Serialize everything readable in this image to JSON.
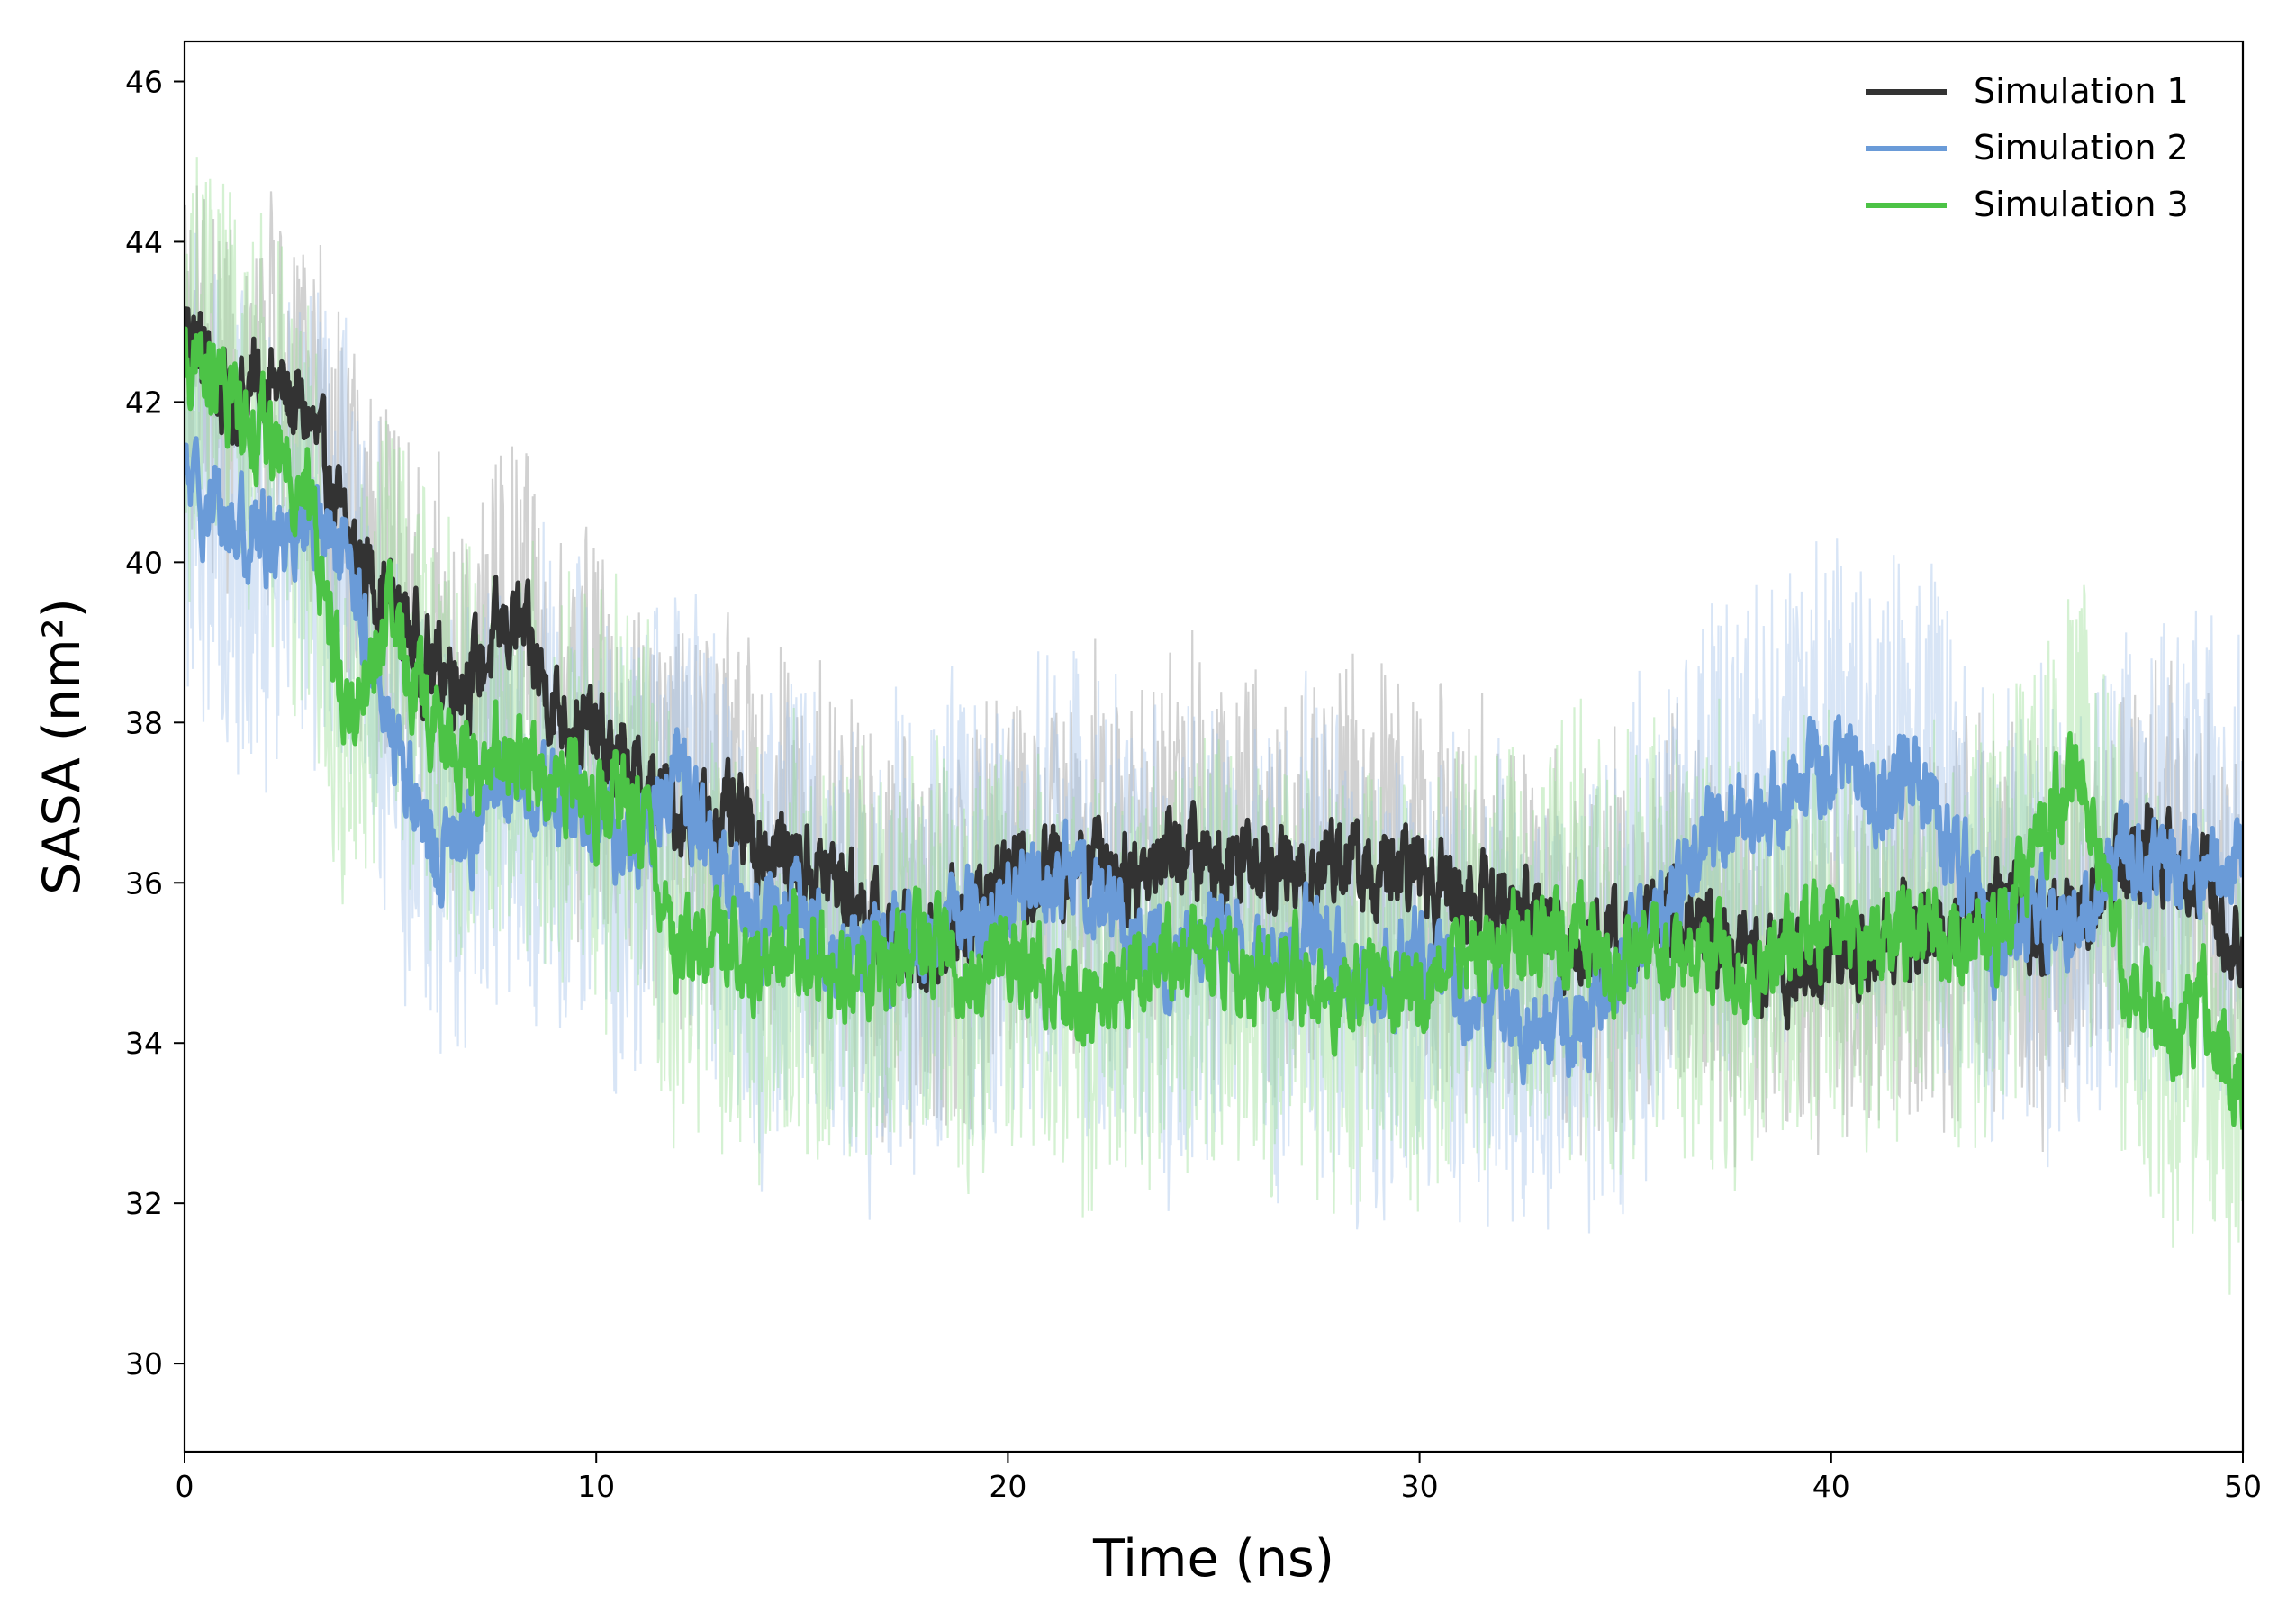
{
  "chart_data": {
    "type": "line",
    "xlabel": "Time (ns)",
    "ylabel": "SASA (nm²)",
    "xlim": [
      0,
      50
    ],
    "ylim": [
      28.9,
      46.5
    ],
    "x_ticks": [
      "0",
      "10",
      "20",
      "30",
      "40",
      "50"
    ],
    "y_ticks": [
      "30",
      "32",
      "34",
      "36",
      "38",
      "40",
      "42",
      "44",
      "46"
    ],
    "grid": false,
    "legend_position": "top-right",
    "series": [
      {
        "name": "Simulation 1",
        "color": "#333333",
        "band_color": "#999999",
        "x": [
          0,
          1,
          2,
          3,
          4,
          5,
          6,
          7,
          8,
          9,
          10,
          11,
          12,
          13,
          14,
          15,
          16,
          17,
          18,
          19,
          20,
          21,
          22,
          23,
          24,
          25,
          26,
          27,
          28,
          29,
          30,
          31,
          32,
          33,
          34,
          35,
          36,
          37,
          38,
          39,
          40,
          41,
          42,
          43,
          44,
          45,
          46,
          47,
          48,
          49,
          50
        ],
        "mean": [
          43.0,
          42.0,
          42.3,
          41.8,
          40.2,
          39.5,
          38.7,
          38.6,
          39.3,
          38.2,
          37.8,
          37.2,
          36.9,
          36.8,
          36.5,
          36.2,
          36.0,
          35.3,
          35.2,
          35.6,
          36.0,
          36.2,
          36.4,
          36.1,
          36.5,
          36.2,
          36.5,
          36.0,
          36.4,
          36.0,
          36.2,
          35.8,
          35.7,
          35.5,
          35.2,
          35.3,
          35.6,
          35.4,
          35.0,
          34.9,
          35.1,
          35.2,
          35.4,
          35.5,
          35.8,
          35.4,
          35.7,
          36.2,
          36.5,
          36.0,
          35.2
        ],
        "band_halfwidth": 2.3
      },
      {
        "name": "Simulation 2",
        "color": "#6a9bd8",
        "band_color": "#a9c6ea",
        "x": [
          0,
          1,
          2,
          3,
          4,
          5,
          6,
          7,
          8,
          9,
          10,
          11,
          12,
          13,
          14,
          15,
          16,
          17,
          18,
          19,
          20,
          21,
          22,
          23,
          24,
          25,
          26,
          27,
          28,
          29,
          30,
          31,
          32,
          33,
          34,
          35,
          36,
          37,
          38,
          39,
          40,
          41,
          42,
          43,
          44,
          45,
          46,
          47,
          48,
          49,
          50
        ],
        "mean": [
          41.0,
          40.5,
          40.3,
          40.6,
          39.8,
          38.0,
          36.3,
          36.7,
          37.4,
          37.0,
          36.7,
          36.5,
          37.5,
          36.0,
          35.5,
          35.6,
          35.2,
          35.1,
          35.4,
          35.6,
          35.7,
          36.0,
          36.0,
          35.4,
          35.0,
          35.5,
          35.0,
          35.3,
          35.0,
          34.8,
          35.2,
          34.5,
          34.5,
          34.1,
          34.3,
          35.1,
          35.7,
          36.5,
          36.9,
          37.2,
          37.6,
          37.2,
          37.3,
          36.4,
          35.2,
          35.7,
          35.5,
          36.4,
          36.2,
          36.3,
          36.2
        ],
        "band_halfwidth": 2.8
      },
      {
        "name": "Simulation 3",
        "color": "#4cc346",
        "band_color": "#9fdf9b",
        "x": [
          0,
          1,
          2,
          3,
          4,
          5,
          6,
          7,
          8,
          9,
          10,
          11,
          12,
          13,
          14,
          15,
          16,
          17,
          18,
          19,
          20,
          21,
          22,
          23,
          24,
          25,
          26,
          27,
          28,
          29,
          30,
          31,
          32,
          33,
          34,
          35,
          36,
          37,
          38,
          39,
          40,
          41,
          42,
          43,
          44,
          45,
          46,
          47,
          48,
          49,
          50
        ],
        "mean": [
          42.5,
          42.1,
          41.6,
          40.8,
          38.0,
          39.2,
          38.0,
          37.4,
          37.6,
          37.3,
          37.0,
          36.9,
          35.2,
          35.3,
          35.0,
          35.3,
          34.8,
          35.0,
          35.4,
          34.7,
          35.2,
          34.8,
          34.6,
          34.8,
          35.3,
          35.1,
          34.8,
          34.9,
          34.6,
          34.8,
          34.6,
          35.2,
          35.3,
          35.4,
          35.2,
          35.0,
          35.1,
          35.2,
          34.8,
          35.2,
          35.4,
          35.3,
          35.4,
          35.3,
          35.3,
          36.4,
          37.6,
          35.0,
          34.3,
          34.4,
          33.4
        ],
        "band_halfwidth": 2.5
      }
    ]
  }
}
